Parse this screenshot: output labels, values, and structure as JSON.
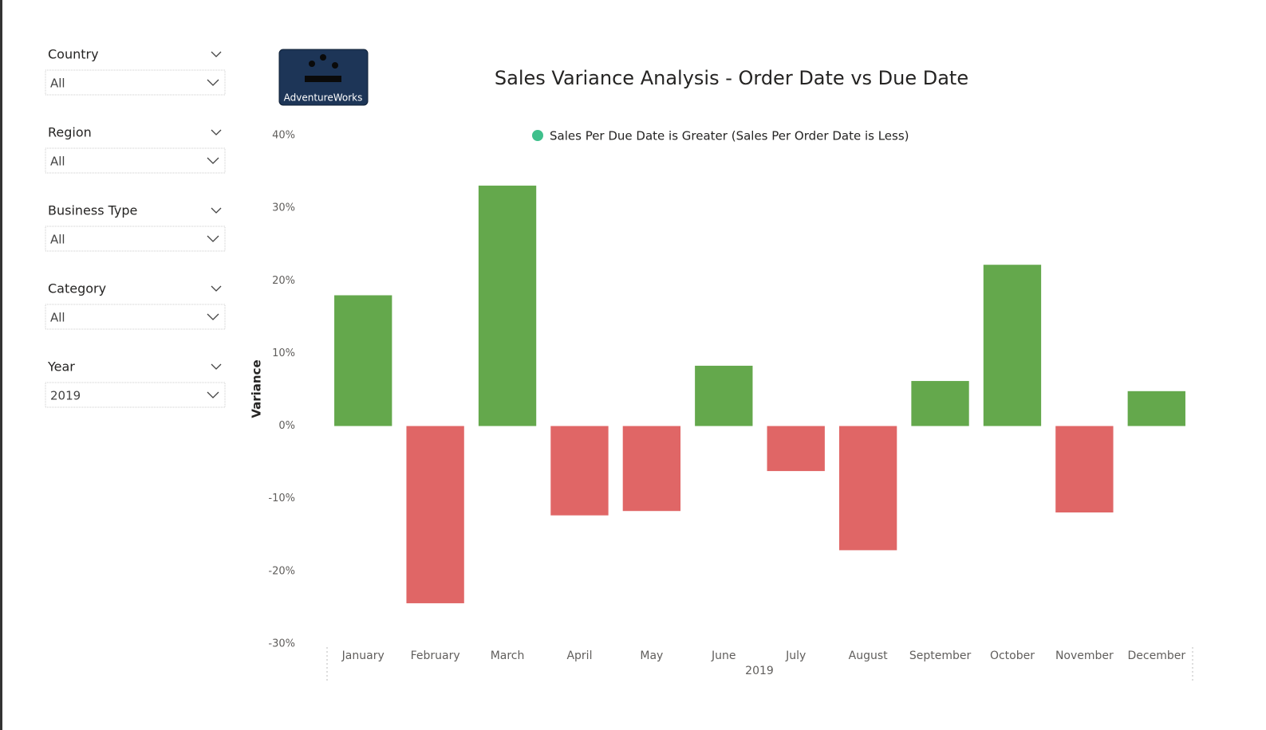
{
  "slicers": [
    {
      "label": "Country",
      "value": "All"
    },
    {
      "label": "Region",
      "value": "All"
    },
    {
      "label": "Business Type",
      "value": "All"
    },
    {
      "label": "Category",
      "value": "All"
    },
    {
      "label": "Year",
      "value": "2019"
    }
  ],
  "logo": {
    "label": "AdventureWorks"
  },
  "chart_data": {
    "type": "bar",
    "title": "Sales Variance Analysis - Order Date vs Due Date",
    "y_label": "Variance",
    "x_label": "2019",
    "categories": [
      "January",
      "February",
      "March",
      "April",
      "May",
      "June",
      "July",
      "August",
      "September",
      "October",
      "November",
      "December"
    ],
    "series": [
      {
        "name": "Sales Per Due Date is Greater (Sales Per Order Date is Less)",
        "color": "#3fc08c",
        "values": [
          18.0,
          -24.4,
          33.1,
          -12.3,
          -11.7,
          8.3,
          -6.2,
          -17.1,
          6.2,
          22.2,
          -11.9,
          4.8
        ]
      }
    ],
    "positive_color": "#64a84c",
    "negative_color": "#e06666",
    "ylim": [
      -30,
      40
    ],
    "yticks": [
      {
        "value": -30,
        "label": "-30%"
      },
      {
        "value": -20,
        "label": "-20%"
      },
      {
        "value": -10,
        "label": "-10%"
      },
      {
        "value": 0,
        "label": "0%"
      },
      {
        "value": 10,
        "label": "10%"
      },
      {
        "value": 20,
        "label": "20%"
      },
      {
        "value": 30,
        "label": "30%"
      },
      {
        "value": 40,
        "label": "40%"
      }
    ],
    "grid": false
  }
}
